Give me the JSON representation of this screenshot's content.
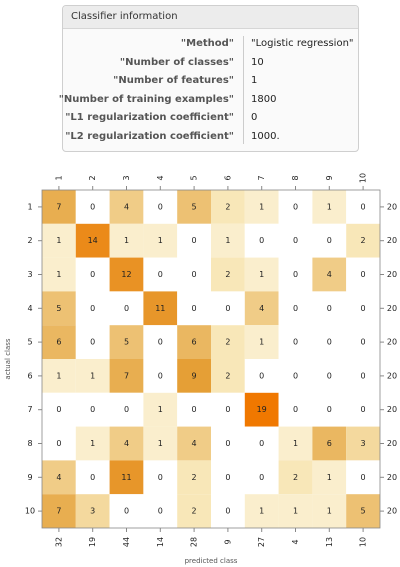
{
  "panel": {
    "title": "Classifier information",
    "rows": [
      {
        "key": "\"Method\"",
        "value": "\"Logistic regression\""
      },
      {
        "key": "\"Number of classes\"",
        "value": "10"
      },
      {
        "key": "\"Number of features\"",
        "value": "1"
      },
      {
        "key": "\"Number of training examples\"",
        "value": "1800"
      },
      {
        "key": "\"L1 regularization coefficient\"",
        "value": "0"
      },
      {
        "key": "\"L2 regularization coefficient\"",
        "value": "1000."
      }
    ]
  },
  "chart_data": {
    "type": "heatmap",
    "x_label": "predicted class",
    "y_label": "actual class",
    "categories": [
      "1",
      "2",
      "3",
      "4",
      "5",
      "6",
      "7",
      "8",
      "9",
      "10"
    ],
    "values": [
      [
        7,
        0,
        4,
        0,
        5,
        2,
        1,
        0,
        1,
        0
      ],
      [
        1,
        14,
        1,
        1,
        0,
        1,
        0,
        0,
        0,
        2
      ],
      [
        1,
        0,
        12,
        0,
        0,
        2,
        1,
        0,
        4,
        0
      ],
      [
        5,
        0,
        0,
        11,
        0,
        0,
        4,
        0,
        0,
        0
      ],
      [
        6,
        0,
        5,
        0,
        6,
        2,
        1,
        0,
        0,
        0
      ],
      [
        1,
        1,
        7,
        0,
        9,
        2,
        0,
        0,
        0,
        0
      ],
      [
        0,
        0,
        0,
        1,
        0,
        0,
        19,
        0,
        0,
        0
      ],
      [
        0,
        1,
        4,
        1,
        4,
        0,
        0,
        1,
        6,
        3
      ],
      [
        4,
        0,
        11,
        0,
        2,
        0,
        0,
        2,
        1,
        0
      ],
      [
        7,
        3,
        0,
        0,
        2,
        0,
        1,
        1,
        1,
        5
      ]
    ],
    "row_totals": [
      20,
      20,
      20,
      20,
      20,
      20,
      20,
      20,
      20,
      20
    ],
    "column_totals": [
      32,
      19,
      44,
      14,
      28,
      9,
      27,
      4,
      13,
      10
    ],
    "colors": [
      "#ffffff",
      "#f8e6b6",
      "#e4a23a",
      "#f07800"
    ]
  }
}
